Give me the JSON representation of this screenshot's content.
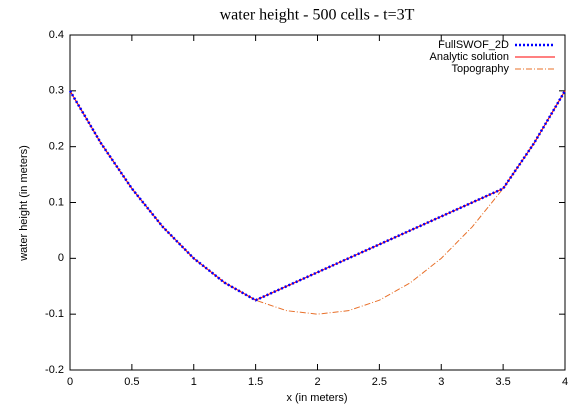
{
  "chart_data": {
    "type": "line",
    "title": "water height - 500 cells - t=3T",
    "x_label": "x (in meters)",
    "y_label": "water height (in meters)",
    "x": [
      0,
      0.25,
      0.5,
      0.75,
      1,
      1.25,
      1.5,
      1.75,
      2,
      2.25,
      2.5,
      2.75,
      3,
      3.25,
      3.5,
      3.75,
      4
    ],
    "series": [
      {
        "name": "Topography",
        "color": "#e8702a",
        "dash": "dashdot",
        "values": [
          0.3,
          0.20625,
          0.125,
          0.05625,
          0,
          -0.04375,
          -0.075,
          -0.09375,
          -0.1,
          -0.09375,
          -0.075,
          -0.04375,
          0,
          0.05625,
          0.125,
          0.20625,
          0.3
        ]
      },
      {
        "name": "Analytic solution",
        "color": "#ff0000",
        "dash": "solid",
        "values": [
          0.3,
          0.20625,
          0.125,
          0.05625,
          0,
          -0.04375,
          -0.075,
          -0.05,
          -0.025,
          0,
          0.025,
          0.05,
          0.075,
          0.1,
          0.125,
          0.20625,
          0.3
        ]
      },
      {
        "name": "FullSWOF_2D",
        "color": "#0000ff",
        "dash": "dotted",
        "values": [
          0.3,
          0.20625,
          0.125,
          0.05625,
          0,
          -0.04375,
          -0.075,
          -0.05,
          -0.025,
          0,
          0.025,
          0.05,
          0.075,
          0.1,
          0.125,
          0.20625,
          0.3
        ]
      }
    ],
    "legend_order": [
      2,
      1,
      0
    ],
    "legend": "top right",
    "xlim": [
      0,
      4
    ],
    "xticks": [
      0,
      0.5,
      1,
      1.5,
      2,
      2.5,
      3,
      3.5,
      4
    ],
    "ylim": [
      -0.2,
      0.4
    ],
    "yticks": [
      -0.2,
      -0.1,
      0,
      0.1,
      0.2,
      0.3,
      0.4
    ],
    "grid": false
  }
}
